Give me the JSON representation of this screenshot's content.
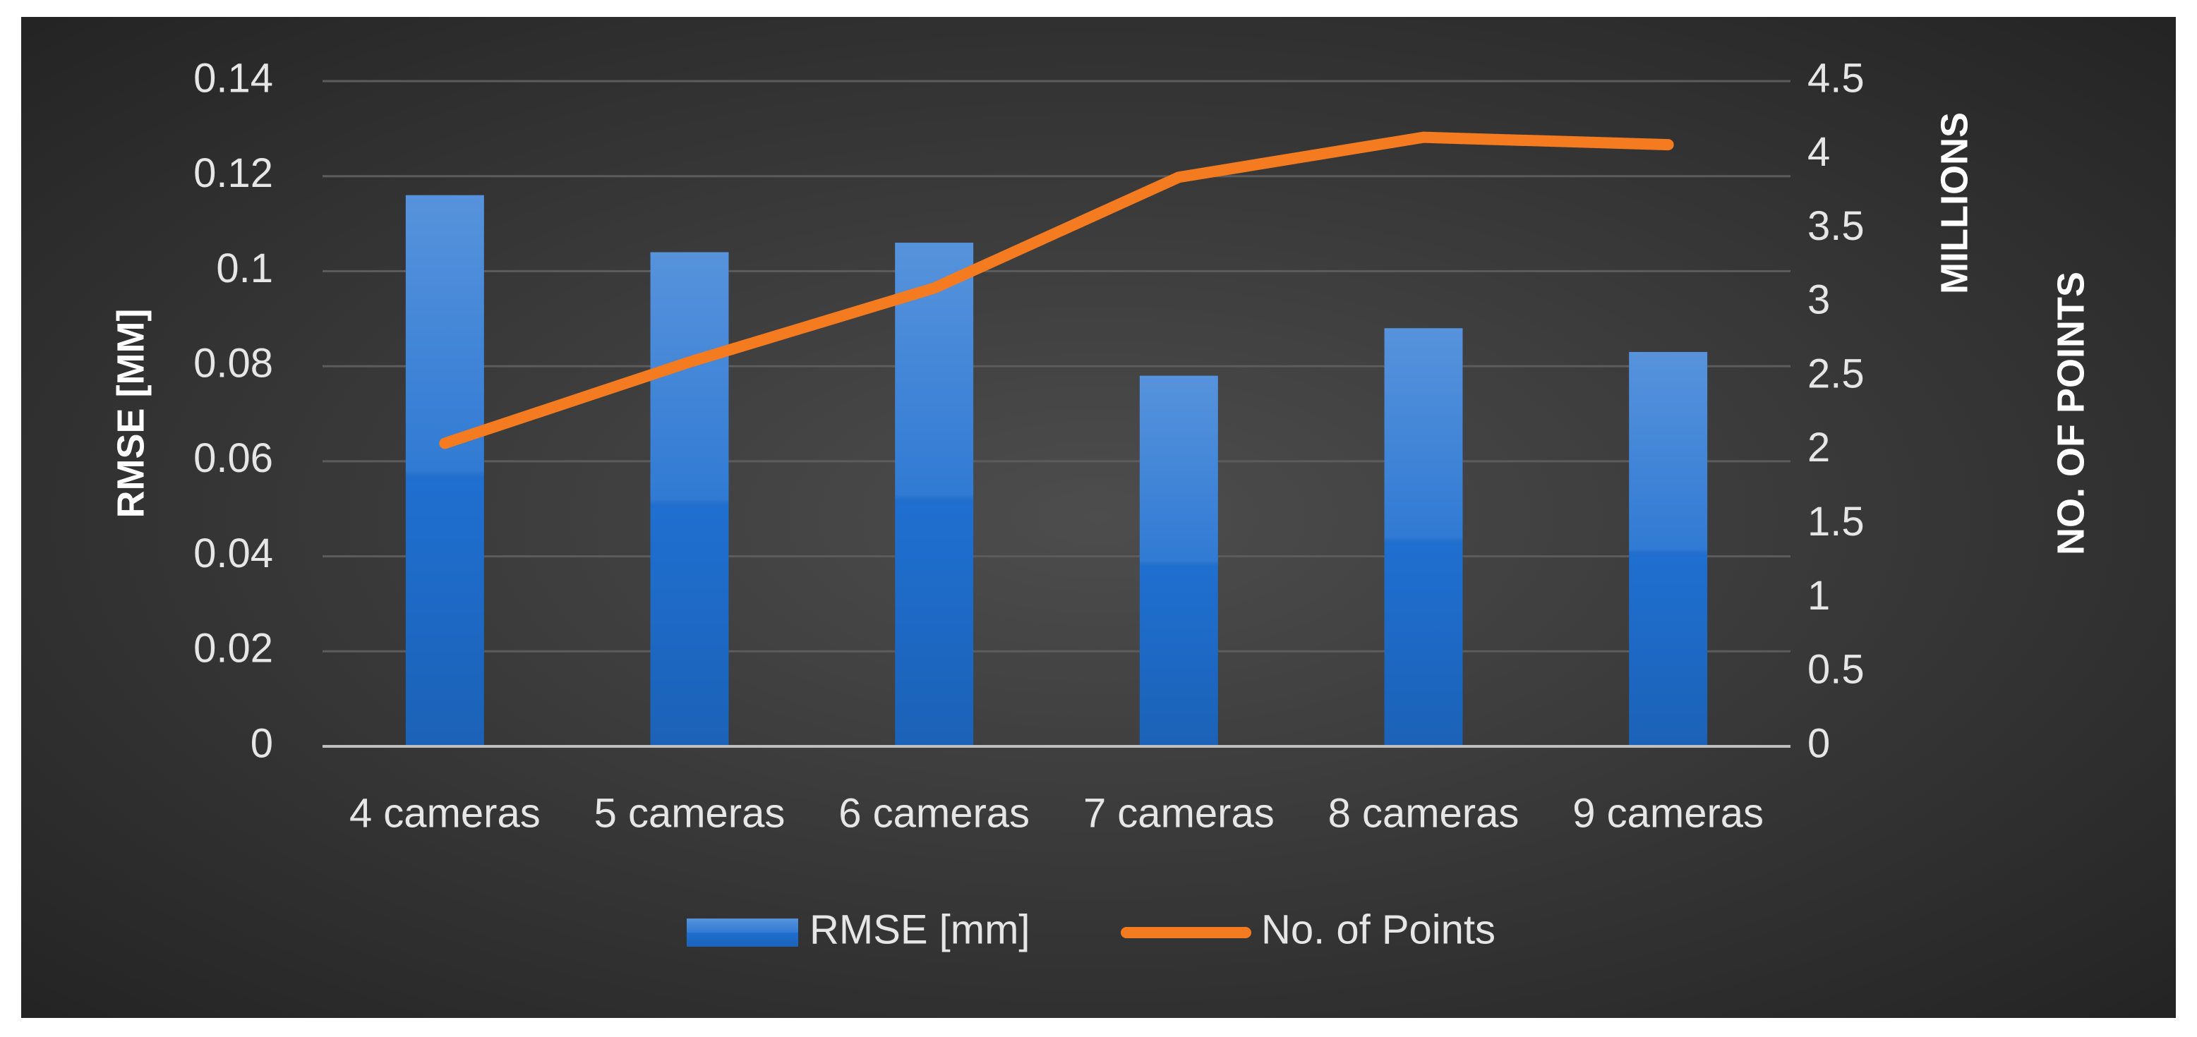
{
  "chart_data": {
    "type": "bar",
    "categories": [
      "4 cameras",
      "5 cameras",
      "6 cameras",
      "7 cameras",
      "8 cameras",
      "9 cameras"
    ],
    "series": [
      {
        "name": "RMSE [mm]",
        "type": "bar",
        "color": "#1f6fd0",
        "values": [
          0.116,
          0.104,
          0.106,
          0.078,
          0.088,
          0.083
        ]
      },
      {
        "name": "No. of Points",
        "type": "line",
        "axis": "y2",
        "color": "#f47b20",
        "values": [
          2.05,
          2.6,
          3.1,
          3.85,
          4.12,
          4.07
        ]
      }
    ],
    "y_label": "RMSE [MM]",
    "y2_label": "NO. OF POINTS",
    "y2_unit_label": "MILLIONS",
    "ylim": [
      0,
      0.14
    ],
    "yticks": [
      0,
      0.02,
      0.04,
      0.06,
      0.08,
      0.1,
      0.12,
      0.14
    ],
    "y2lim": [
      0,
      4.5
    ],
    "y2ticks": [
      0,
      0.5,
      1,
      1.5,
      2,
      2.5,
      3,
      3.5,
      4,
      4.5
    ],
    "grid": true,
    "legend": "bottom"
  }
}
